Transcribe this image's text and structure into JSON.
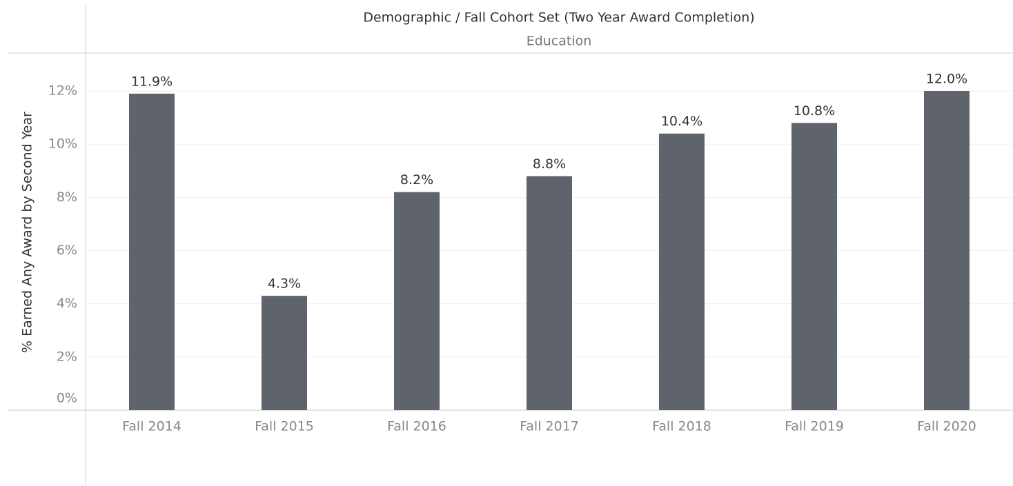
{
  "chart_data": {
    "type": "bar",
    "title": "Demographic / Fall Cohort Set (Two Year Award Completion)",
    "subtitle": "Education",
    "y_label": "% Earned Any Award by Second Year",
    "categories": [
      "Fall 2014",
      "Fall 2015",
      "Fall 2016",
      "Fall 2017",
      "Fall 2018",
      "Fall 2019",
      "Fall 2020"
    ],
    "values": [
      11.9,
      4.3,
      8.2,
      8.8,
      10.4,
      10.8,
      12.0
    ],
    "value_labels": [
      "11.9%",
      "4.3%",
      "8.2%",
      "8.8%",
      "10.4%",
      "10.8%",
      "12.0%"
    ],
    "color": "#5f636b",
    "ylim": [
      0,
      13.4
    ],
    "yticks": [
      {
        "value": 0,
        "label": "0%"
      },
      {
        "value": 2,
        "label": "2%"
      },
      {
        "value": 4,
        "label": "4%"
      },
      {
        "value": 6,
        "label": "6%"
      },
      {
        "value": 8,
        "label": "8%"
      },
      {
        "value": 10,
        "label": "10%"
      },
      {
        "value": 12,
        "label": "12%"
      }
    ],
    "grid": true
  }
}
